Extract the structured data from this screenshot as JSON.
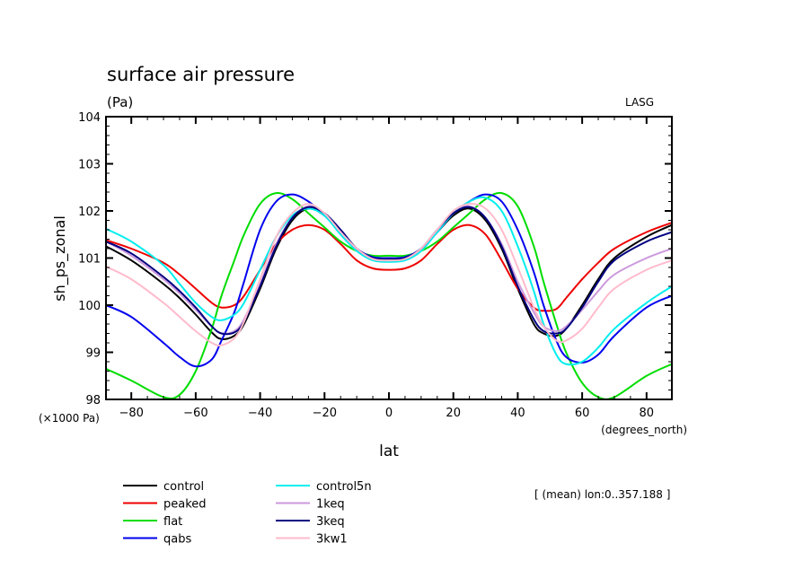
{
  "chart_data": {
    "type": "line",
    "title": "surface air pressure",
    "units_label": "(Pa)",
    "credit": "LASG",
    "ylabel": "sh_ps_zonal",
    "yscale_label": "(×1000 Pa)",
    "xlabel": "lat",
    "xunits_label": "(degrees_north)",
    "subtitle_note": "[ (mean) lon:0..357.188 ]",
    "xlim": [
      -87.86,
      87.86
    ],
    "ylim": [
      98,
      104
    ],
    "xticks": [
      -80,
      -60,
      -40,
      -20,
      0,
      20,
      40,
      60,
      80
    ],
    "xtick_labels": [
      "−80",
      "−60",
      "−40",
      "−20",
      "0",
      "20",
      "40",
      "60",
      "80"
    ],
    "yticks": [
      98,
      99,
      100,
      101,
      102,
      103,
      104
    ],
    "ytick_labels": [
      "98",
      "99",
      "100",
      "101",
      "102",
      "103",
      "104"
    ],
    "grid": false,
    "legend_placement": "bottom-left",
    "x": [
      -87.86,
      -80,
      -70,
      -65,
      -60,
      -55,
      -52,
      -48,
      -45,
      -40,
      -35,
      -30,
      -25,
      -20,
      -15,
      -10,
      -5,
      0,
      5,
      10,
      15,
      20,
      25,
      30,
      35,
      40,
      45,
      48,
      52,
      55,
      60,
      65,
      70,
      80,
      87.86
    ],
    "series": [
      {
        "name": "control",
        "color": "#000000",
        "values": [
          101.25,
          100.95,
          100.45,
          100.15,
          99.8,
          99.42,
          99.28,
          99.35,
          99.6,
          100.35,
          101.2,
          101.8,
          102.05,
          101.9,
          101.55,
          101.2,
          101.0,
          101.0,
          101.0,
          101.2,
          101.55,
          101.9,
          102.05,
          101.8,
          101.2,
          100.35,
          99.6,
          99.4,
          99.35,
          99.5,
          100.0,
          100.55,
          101.0,
          101.45,
          101.7
        ]
      },
      {
        "name": "peaked",
        "color": "#ee0000",
        "values": [
          101.38,
          101.2,
          100.9,
          100.65,
          100.35,
          100.05,
          99.95,
          100.0,
          100.2,
          100.75,
          101.3,
          101.6,
          101.7,
          101.6,
          101.3,
          100.95,
          100.78,
          100.75,
          100.78,
          100.95,
          101.3,
          101.6,
          101.7,
          101.5,
          100.95,
          100.35,
          99.95,
          99.88,
          99.92,
          100.15,
          100.55,
          100.9,
          101.2,
          101.55,
          101.75
        ]
      },
      {
        "name": "flat",
        "color": "#00dd00",
        "values": [
          98.65,
          98.4,
          98.05,
          98.1,
          98.6,
          99.5,
          100.2,
          100.95,
          101.5,
          102.15,
          102.38,
          102.25,
          101.95,
          101.65,
          101.35,
          101.15,
          101.05,
          101.05,
          101.05,
          101.15,
          101.35,
          101.65,
          101.95,
          102.25,
          102.38,
          102.1,
          101.25,
          100.5,
          99.6,
          99.0,
          98.35,
          98.05,
          98.05,
          98.5,
          98.75
        ]
      },
      {
        "name": "qabs",
        "color": "#0000ee",
        "values": [
          100.0,
          99.75,
          99.2,
          98.9,
          98.7,
          98.85,
          99.25,
          99.85,
          100.5,
          101.6,
          102.2,
          102.35,
          102.2,
          101.9,
          101.55,
          101.2,
          101.02,
          101.0,
          101.02,
          101.2,
          101.55,
          101.95,
          102.2,
          102.35,
          102.2,
          101.6,
          100.7,
          100.0,
          99.25,
          98.9,
          98.78,
          98.95,
          99.35,
          99.95,
          100.2
        ]
      },
      {
        "name": "control5n",
        "color": "#00eeee",
        "values": [
          101.62,
          101.35,
          100.85,
          100.45,
          100.05,
          99.75,
          99.68,
          99.8,
          100.05,
          100.75,
          101.45,
          101.9,
          102.05,
          101.9,
          101.5,
          101.15,
          100.95,
          100.92,
          100.95,
          101.15,
          101.55,
          101.95,
          102.2,
          102.28,
          102.0,
          101.25,
          100.3,
          99.6,
          98.95,
          98.75,
          98.8,
          99.1,
          99.5,
          100.05,
          100.4
        ]
      },
      {
        "name": "1keq",
        "color": "#cc99dd",
        "values": [
          101.35,
          101.05,
          100.55,
          100.25,
          99.9,
          99.55,
          99.4,
          99.45,
          99.7,
          100.45,
          101.3,
          101.85,
          102.1,
          101.95,
          101.6,
          101.2,
          100.98,
          100.95,
          100.98,
          101.2,
          101.6,
          101.95,
          102.1,
          101.85,
          101.3,
          100.5,
          99.85,
          99.55,
          99.45,
          99.55,
          99.9,
          100.3,
          100.65,
          101.0,
          101.2
        ]
      },
      {
        "name": "3keq",
        "color": "#000080",
        "values": [
          101.35,
          101.1,
          100.6,
          100.3,
          99.95,
          99.55,
          99.4,
          99.42,
          99.65,
          100.4,
          101.25,
          101.85,
          102.08,
          101.95,
          101.6,
          101.2,
          101.0,
          100.98,
          101.0,
          101.2,
          101.6,
          101.95,
          102.08,
          101.85,
          101.25,
          100.4,
          99.7,
          99.45,
          99.4,
          99.5,
          99.95,
          100.5,
          100.95,
          101.35,
          101.55
        ]
      },
      {
        "name": "3kw1",
        "color": "#ffbbcc",
        "values": [
          100.82,
          100.55,
          100.05,
          99.75,
          99.45,
          99.2,
          99.15,
          99.3,
          99.65,
          100.55,
          101.45,
          101.95,
          102.15,
          101.95,
          101.55,
          101.2,
          100.98,
          100.95,
          100.98,
          101.2,
          101.6,
          102.0,
          102.15,
          102.05,
          101.6,
          100.8,
          99.95,
          99.55,
          99.25,
          99.25,
          99.5,
          99.95,
          100.35,
          100.75,
          100.95
        ]
      }
    ]
  }
}
